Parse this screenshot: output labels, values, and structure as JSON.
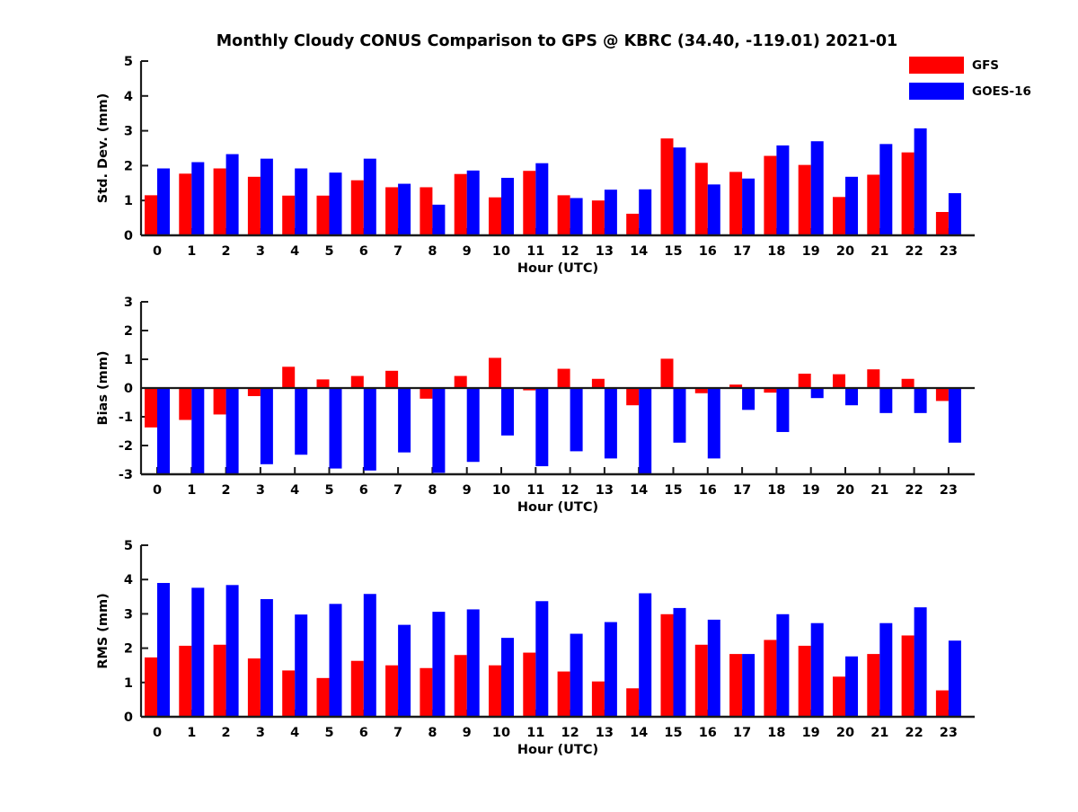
{
  "title": "Monthly Cloudy CONUS Comparison to GPS @ KBRC (34.40, -119.01) 2021-01",
  "legend": [
    {
      "label": "GFS",
      "color": "#ff0000"
    },
    {
      "label": "GOES-16",
      "color": "#0000ff"
    }
  ],
  "colors": {
    "gfs": "#ff0000",
    "goes16": "#0000ff",
    "axis": "#1a1a1a",
    "text": "#000000"
  },
  "chart_data": [
    {
      "type": "bar",
      "name": "std-dev",
      "ylabel": "Std. Dev. (mm)",
      "xlabel": "Hour (UTC)",
      "ylim": [
        0,
        5
      ],
      "yticks": [
        0,
        1,
        2,
        3,
        4,
        5
      ],
      "grid": false,
      "legend_position": "top-right",
      "categories": [
        "0",
        "1",
        "2",
        "3",
        "4",
        "5",
        "6",
        "7",
        "8",
        "9",
        "10",
        "11",
        "12",
        "13",
        "14",
        "15",
        "16",
        "17",
        "18",
        "19",
        "20",
        "21",
        "22",
        "23"
      ],
      "series": [
        {
          "name": "GFS",
          "color": "#ff0000",
          "values": [
            1.15,
            1.77,
            1.92,
            1.68,
            1.14,
            1.14,
            1.58,
            1.38,
            1.38,
            1.76,
            1.09,
            1.85,
            1.15,
            1.0,
            0.62,
            2.78,
            2.08,
            1.82,
            2.28,
            2.02,
            1.1,
            1.74,
            2.38,
            0.67
          ]
        },
        {
          "name": "GOES-16",
          "color": "#0000ff",
          "values": [
            1.92,
            2.1,
            2.33,
            2.2,
            1.92,
            1.8,
            2.2,
            1.48,
            0.88,
            1.86,
            1.65,
            2.07,
            1.07,
            1.31,
            1.32,
            2.52,
            1.46,
            1.63,
            2.58,
            2.7,
            1.68,
            2.62,
            3.07,
            1.21
          ]
        }
      ]
    },
    {
      "type": "bar",
      "name": "bias",
      "ylabel": "Bias (mm)",
      "xlabel": "Hour (UTC)",
      "ylim": [
        -3,
        3
      ],
      "yticks": [
        -3,
        -2,
        -1,
        0,
        1,
        2,
        3
      ],
      "grid": false,
      "categories": [
        "0",
        "1",
        "2",
        "3",
        "4",
        "5",
        "6",
        "7",
        "8",
        "9",
        "10",
        "11",
        "12",
        "13",
        "14",
        "15",
        "16",
        "17",
        "18",
        "19",
        "20",
        "21",
        "22",
        "23"
      ],
      "series": [
        {
          "name": "GFS",
          "color": "#ff0000",
          "values": [
            -1.37,
            -1.11,
            -0.92,
            -0.28,
            0.74,
            0.3,
            0.42,
            0.6,
            -0.37,
            0.42,
            1.05,
            -0.08,
            0.67,
            0.32,
            -0.6,
            1.02,
            -0.18,
            0.12,
            -0.16,
            0.5,
            0.48,
            0.65,
            0.32,
            -0.45
          ]
        },
        {
          "name": "GOES-16",
          "color": "#0000ff",
          "values": [
            -3.0,
            -3.0,
            -3.0,
            -2.65,
            -2.32,
            -2.8,
            -2.87,
            -2.24,
            -2.95,
            -2.57,
            -1.65,
            -2.72,
            -2.2,
            -2.45,
            -3.0,
            -1.9,
            -2.45,
            -0.76,
            -1.53,
            -0.35,
            -0.6,
            -0.87,
            -0.87,
            -1.9
          ]
        }
      ]
    },
    {
      "type": "bar",
      "name": "rms",
      "ylabel": "RMS (mm)",
      "xlabel": "Hour (UTC)",
      "ylim": [
        0,
        5
      ],
      "yticks": [
        0,
        1,
        2,
        3,
        4,
        5
      ],
      "grid": false,
      "categories": [
        "0",
        "1",
        "2",
        "3",
        "4",
        "5",
        "6",
        "7",
        "8",
        "9",
        "10",
        "11",
        "12",
        "13",
        "14",
        "15",
        "16",
        "17",
        "18",
        "19",
        "20",
        "21",
        "22",
        "23"
      ],
      "series": [
        {
          "name": "GFS",
          "color": "#ff0000",
          "values": [
            1.73,
            2.07,
            2.1,
            1.7,
            1.35,
            1.13,
            1.63,
            1.5,
            1.42,
            1.8,
            1.5,
            1.87,
            1.32,
            1.03,
            0.83,
            2.99,
            2.1,
            1.83,
            2.24,
            2.07,
            1.17,
            1.83,
            2.37,
            0.77
          ]
        },
        {
          "name": "GOES-16",
          "color": "#0000ff",
          "values": [
            3.9,
            3.76,
            3.84,
            3.43,
            2.98,
            3.29,
            3.58,
            2.68,
            3.06,
            3.13,
            2.3,
            3.37,
            2.42,
            2.76,
            3.6,
            3.17,
            2.83,
            1.83,
            2.99,
            2.73,
            1.76,
            2.73,
            3.19,
            2.22
          ]
        }
      ]
    }
  ]
}
